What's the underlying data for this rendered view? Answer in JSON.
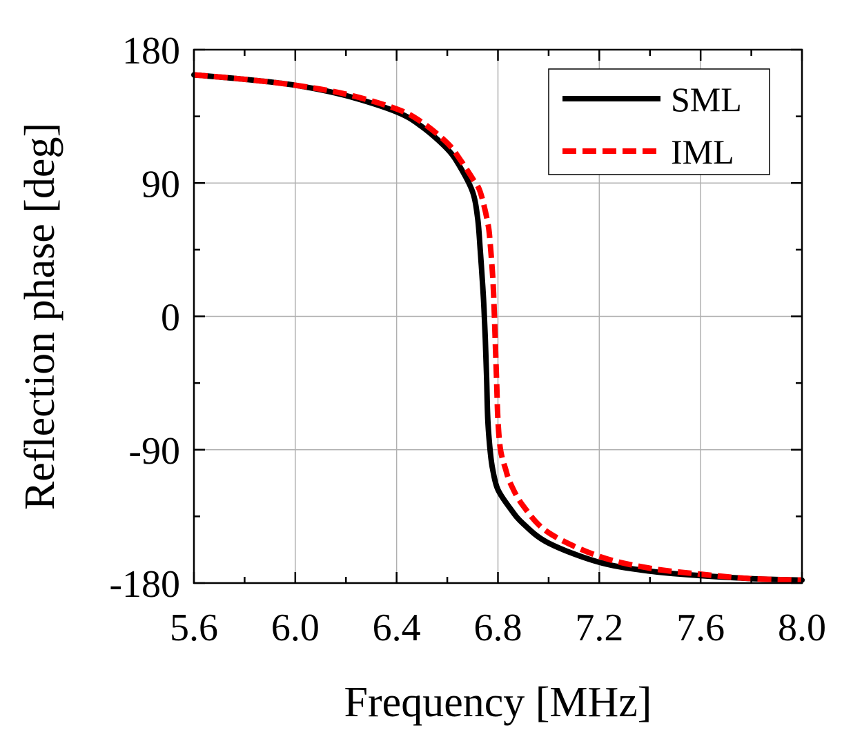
{
  "chart_data": {
    "type": "line",
    "xlabel": "Frequency [MHz]",
    "ylabel": "Reflection phase [deg]",
    "xlim": [
      5.6,
      8.0
    ],
    "ylim": [
      -180,
      180
    ],
    "xticks": [
      5.6,
      6.0,
      6.4,
      6.8,
      7.2,
      7.6,
      8.0
    ],
    "xtick_labels": [
      "5.6",
      "6.0",
      "6.4",
      "6.8",
      "7.2",
      "7.6",
      "8.0"
    ],
    "yticks": [
      -180,
      -90,
      0,
      90,
      180
    ],
    "ytick_labels": [
      "-180",
      "-90",
      "0",
      "90",
      "180"
    ],
    "grid": true,
    "legend_position": "top-right",
    "series": [
      {
        "name": "SML",
        "color": "#000000",
        "style": "solid",
        "x": [
          5.6,
          5.8,
          6.0,
          6.2,
          6.4,
          6.5,
          6.6,
          6.65,
          6.7,
          6.72,
          6.73,
          6.74,
          6.745,
          6.75,
          6.755,
          6.76,
          6.77,
          6.78,
          6.8,
          6.85,
          6.9,
          7.0,
          7.2,
          7.4,
          7.6,
          7.8,
          8.0
        ],
        "y": [
          163,
          160,
          156,
          149,
          138,
          128,
          113,
          101,
          84,
          66,
          45,
          20,
          5,
          -15,
          -40,
          -70,
          -92,
          -104,
          -117,
          -130,
          -140,
          -153,
          -166,
          -172,
          -175,
          -177,
          -178
        ]
      },
      {
        "name": "IML",
        "color": "#ff0000",
        "style": "dashed",
        "x": [
          5.6,
          5.8,
          6.0,
          6.2,
          6.4,
          6.5,
          6.6,
          6.65,
          6.7,
          6.73,
          6.76,
          6.77,
          6.78,
          6.785,
          6.79,
          6.795,
          6.8,
          6.81,
          6.83,
          6.85,
          6.9,
          7.0,
          7.2,
          7.4,
          7.6,
          7.8,
          8.0
        ],
        "y": [
          163,
          160,
          156,
          150,
          140,
          131,
          117,
          106,
          93,
          84,
          63,
          48,
          25,
          5,
          -20,
          -45,
          -70,
          -90,
          -103,
          -113,
          -128,
          -146,
          -162,
          -170,
          -174,
          -177,
          -178
        ]
      }
    ]
  }
}
